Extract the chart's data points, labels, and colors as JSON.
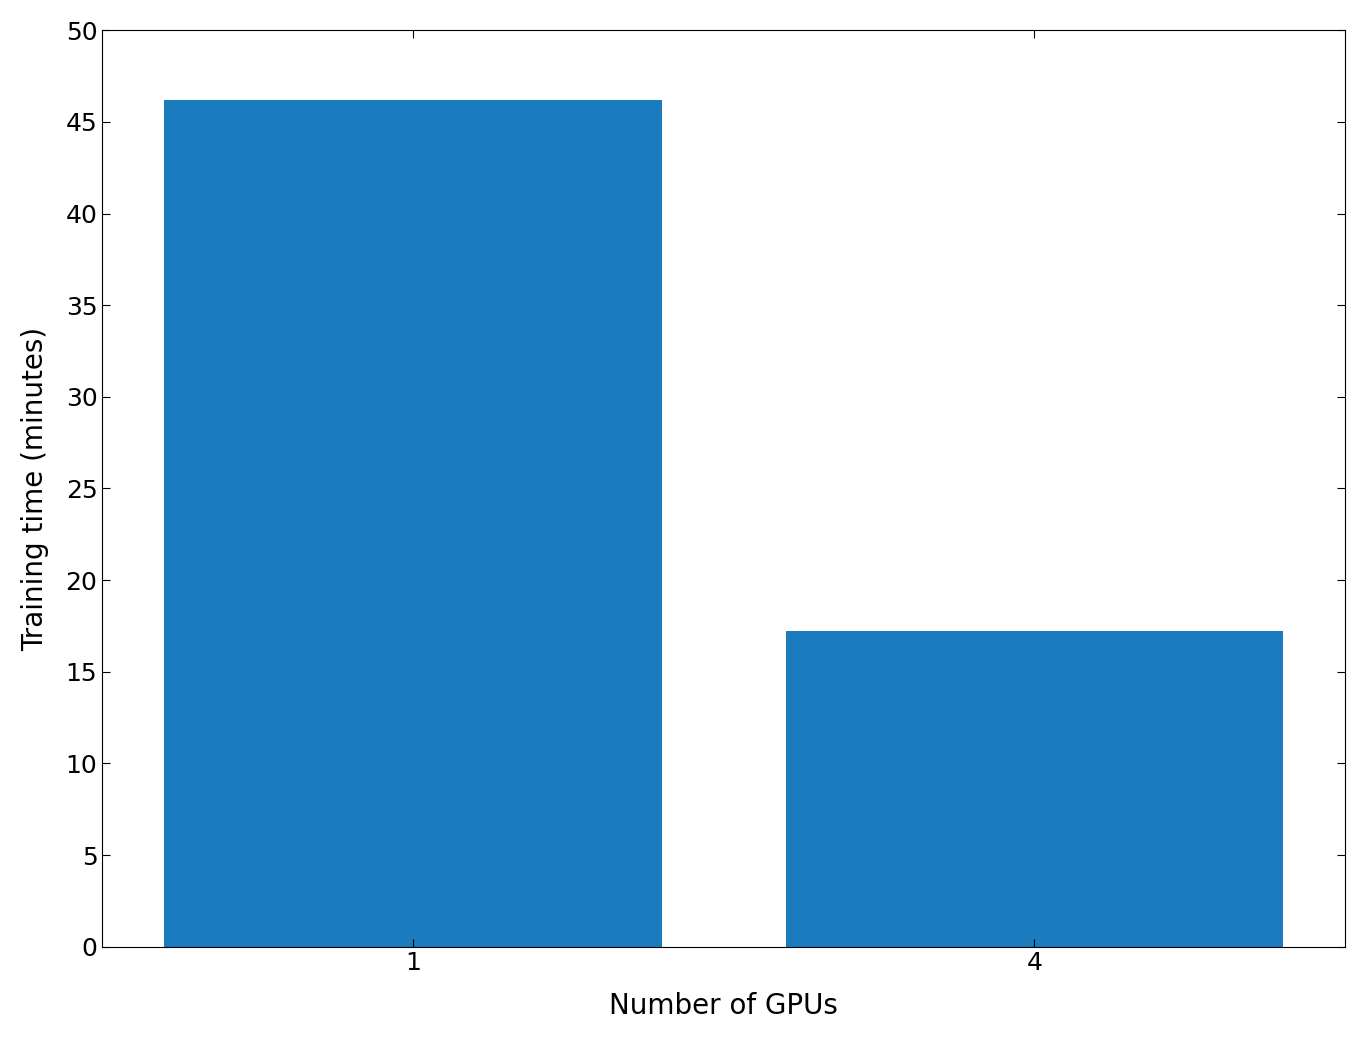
{
  "categories": [
    "1",
    "4"
  ],
  "values": [
    46.2,
    17.2
  ],
  "bar_color": "#1a7bbf",
  "xlabel": "Number of GPUs",
  "ylabel": "Training time (minutes)",
  "ylim": [
    0,
    50
  ],
  "yticks": [
    0,
    5,
    10,
    15,
    20,
    25,
    30,
    35,
    40,
    45,
    50
  ],
  "xlabel_fontsize": 20,
  "ylabel_fontsize": 20,
  "tick_fontsize": 18,
  "bar_width": 0.8,
  "background_color": "#ffffff",
  "xlim": [
    -0.5,
    1.5
  ]
}
